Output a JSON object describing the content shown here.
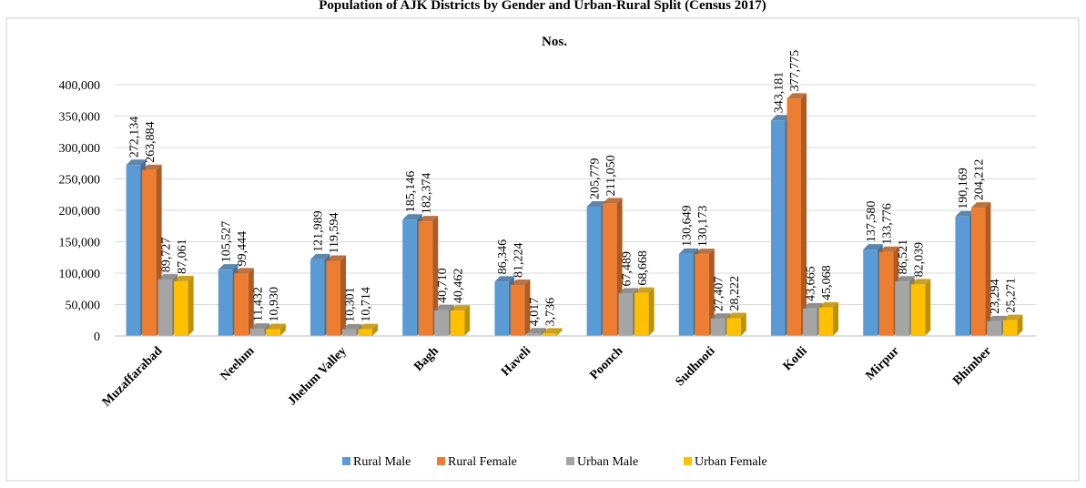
{
  "header_title": "Population of AJK Districts by Gender and Urban-Rural Split (Census 2017)",
  "chart_data": {
    "type": "bar",
    "title": "Nos.",
    "xlabel": "",
    "ylabel": "",
    "ylim": [
      0,
      400000
    ],
    "yticks": [
      0,
      50000,
      100000,
      150000,
      200000,
      250000,
      300000,
      350000,
      400000
    ],
    "yticklabels": [
      "0",
      "50,000",
      "100,000",
      "150,000",
      "200,000",
      "250,000",
      "300,000",
      "350,000",
      "400,000"
    ],
    "grid": true,
    "legend_position": "bottom",
    "categories": [
      "Muzaffarabad",
      "Neelum",
      "Jhelum Valley",
      "Bagh",
      "Haveli",
      "Poonch",
      "Sudhnoti",
      "Kotli",
      "Mirpur",
      "Bhimber"
    ],
    "series": [
      {
        "name": "Rural Male",
        "color": "#5B9BD5",
        "side": "#41719C",
        "values": [
          272134,
          105527,
          121989,
          185146,
          86346,
          205779,
          130649,
          343181,
          137580,
          190169
        ],
        "labels": [
          "272,134",
          "105,527",
          "121,989",
          "185,146",
          "86,346",
          "205,779",
          "130,649",
          "343,181",
          "137,580",
          "190,169"
        ]
      },
      {
        "name": "Rural Female",
        "color": "#ED7D31",
        "side": "#AE5A21",
        "values": [
          263884,
          99444,
          119594,
          182374,
          81224,
          211050,
          130173,
          377775,
          133776,
          204212
        ],
        "labels": [
          "263,884",
          "99,444",
          "119,594",
          "182,374",
          "81,224",
          "211,050",
          "130,173",
          "377,775",
          "133,776",
          "204,212"
        ]
      },
      {
        "name": "Urban Male",
        "color": "#A5A5A5",
        "side": "#7C7C7C",
        "values": [
          89727,
          11432,
          10301,
          40710,
          4017,
          67489,
          27407,
          43665,
          86521,
          23294
        ],
        "labels": [
          "89,727",
          "11,432",
          "10,301",
          "40,710",
          "4,017",
          "67,489",
          "27,407",
          "43,665",
          "86,521",
          "23,294"
        ]
      },
      {
        "name": "Urban Female",
        "color": "#FFC000",
        "side": "#BF9000",
        "values": [
          87061,
          10930,
          10714,
          40462,
          3736,
          68668,
          28222,
          45068,
          82039,
          25271
        ],
        "labels": [
          "87,061",
          "10,930",
          "10,714",
          "40,462",
          "3,736",
          "68,668",
          "28,222",
          "45,068",
          "82,039",
          "25,271"
        ]
      }
    ]
  }
}
